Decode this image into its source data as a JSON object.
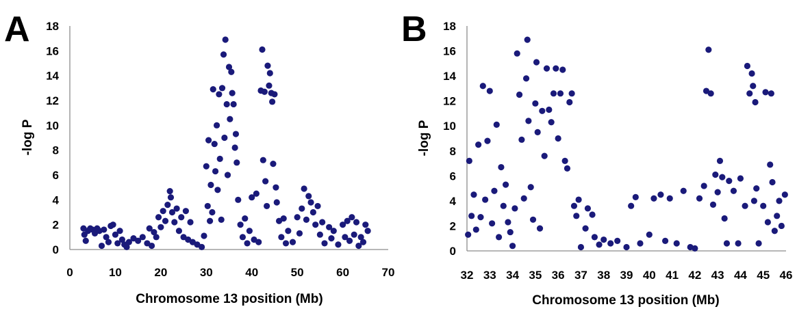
{
  "point_color": "#1a1a7a",
  "axis_color": "#8c8c8c",
  "chart_data": [
    {
      "panel": "A",
      "type": "scatter",
      "xlabel": "Chromosome 13 position (Mb)",
      "ylabel": "-log P",
      "xlim": [
        0,
        70
      ],
      "ylim": [
        0,
        18
      ],
      "xticks": [
        0,
        10,
        20,
        30,
        40,
        50,
        60,
        70
      ],
      "yticks": [
        0,
        2,
        4,
        6,
        8,
        10,
        12,
        14,
        16,
        18
      ],
      "grid": false,
      "points": [
        [
          3.0,
          1.7
        ],
        [
          3.2,
          1.2
        ],
        [
          3.5,
          0.7
        ],
        [
          4.0,
          1.5
        ],
        [
          4.5,
          1.7
        ],
        [
          5.0,
          1.6
        ],
        [
          5.5,
          1.3
        ],
        [
          6.0,
          1.7
        ],
        [
          6.5,
          1.5
        ],
        [
          7.0,
          0.3
        ],
        [
          7.5,
          1.6
        ],
        [
          8.0,
          1.0
        ],
        [
          8.5,
          0.6
        ],
        [
          9.0,
          1.9
        ],
        [
          9.5,
          2.0
        ],
        [
          10.0,
          1.2
        ],
        [
          10.5,
          0.5
        ],
        [
          11.0,
          1.5
        ],
        [
          11.5,
          0.8
        ],
        [
          12.0,
          0.4
        ],
        [
          12.5,
          0.2
        ],
        [
          13.0,
          0.6
        ],
        [
          14.0,
          0.9
        ],
        [
          15.0,
          0.7
        ],
        [
          16.0,
          1.0
        ],
        [
          17.0,
          0.5
        ],
        [
          17.5,
          1.7
        ],
        [
          18.0,
          0.3
        ],
        [
          18.5,
          1.4
        ],
        [
          19.0,
          1.0
        ],
        [
          19.5,
          2.6
        ],
        [
          20.0,
          1.8
        ],
        [
          20.5,
          3.1
        ],
        [
          21.0,
          2.3
        ],
        [
          21.5,
          3.6
        ],
        [
          22.0,
          4.7
        ],
        [
          22.2,
          4.2
        ],
        [
          22.5,
          3.0
        ],
        [
          23.0,
          2.2
        ],
        [
          23.5,
          3.3
        ],
        [
          24.0,
          1.5
        ],
        [
          24.5,
          2.6
        ],
        [
          25.0,
          1.0
        ],
        [
          25.5,
          3.1
        ],
        [
          26.0,
          0.8
        ],
        [
          26.5,
          2.2
        ],
        [
          27.0,
          0.6
        ],
        [
          28.0,
          0.4
        ],
        [
          29.0,
          0.2
        ],
        [
          29.5,
          1.1
        ],
        [
          30.0,
          6.7
        ],
        [
          30.3,
          3.5
        ],
        [
          30.5,
          8.8
        ],
        [
          30.8,
          2.3
        ],
        [
          31.0,
          5.2
        ],
        [
          31.3,
          3.0
        ],
        [
          31.5,
          12.9
        ],
        [
          31.8,
          8.5
        ],
        [
          32.0,
          6.3
        ],
        [
          32.3,
          10.0
        ],
        [
          32.5,
          4.8
        ],
        [
          32.8,
          12.5
        ],
        [
          33.0,
          7.3
        ],
        [
          33.3,
          2.4
        ],
        [
          33.5,
          13.0
        ],
        [
          33.8,
          15.7
        ],
        [
          34.0,
          9.0
        ],
        [
          34.2,
          16.9
        ],
        [
          34.5,
          11.7
        ],
        [
          34.7,
          6.0
        ],
        [
          35.0,
          14.7
        ],
        [
          35.2,
          10.5
        ],
        [
          35.5,
          14.3
        ],
        [
          35.7,
          12.6
        ],
        [
          36.0,
          11.7
        ],
        [
          36.3,
          8.2
        ],
        [
          36.5,
          9.3
        ],
        [
          36.7,
          7.0
        ],
        [
          37.0,
          4.0
        ],
        [
          37.5,
          2.0
        ],
        [
          38.0,
          1.0
        ],
        [
          38.5,
          2.5
        ],
        [
          39.0,
          0.5
        ],
        [
          39.5,
          1.5
        ],
        [
          40.0,
          4.2
        ],
        [
          40.5,
          0.8
        ],
        [
          41.0,
          4.5
        ],
        [
          41.5,
          0.6
        ],
        [
          42.0,
          12.8
        ],
        [
          42.3,
          16.1
        ],
        [
          42.5,
          7.2
        ],
        [
          42.8,
          12.7
        ],
        [
          43.0,
          5.5
        ],
        [
          43.3,
          3.5
        ],
        [
          43.5,
          14.8
        ],
        [
          43.8,
          13.2
        ],
        [
          44.0,
          14.2
        ],
        [
          44.3,
          12.6
        ],
        [
          44.5,
          11.9
        ],
        [
          44.7,
          6.9
        ],
        [
          45.0,
          12.5
        ],
        [
          45.3,
          5.0
        ],
        [
          45.5,
          3.8
        ],
        [
          46.0,
          2.3
        ],
        [
          46.5,
          1.0
        ],
        [
          47.0,
          2.5
        ],
        [
          47.5,
          0.5
        ],
        [
          48.0,
          1.5
        ],
        [
          49.0,
          0.6
        ],
        [
          50.0,
          2.6
        ],
        [
          50.5,
          1.3
        ],
        [
          51.0,
          3.3
        ],
        [
          51.5,
          4.9
        ],
        [
          52.0,
          2.4
        ],
        [
          52.5,
          4.3
        ],
        [
          53.0,
          3.8
        ],
        [
          53.5,
          3.0
        ],
        [
          54.0,
          2.0
        ],
        [
          54.5,
          3.5
        ],
        [
          55.0,
          1.2
        ],
        [
          55.5,
          2.2
        ],
        [
          56.0,
          0.5
        ],
        [
          57.0,
          1.8
        ],
        [
          57.5,
          0.9
        ],
        [
          58.0,
          1.5
        ],
        [
          59.0,
          0.4
        ],
        [
          60.0,
          2.0
        ],
        [
          60.5,
          1.0
        ],
        [
          61.0,
          2.3
        ],
        [
          61.5,
          0.7
        ],
        [
          62.0,
          2.6
        ],
        [
          62.5,
          1.2
        ],
        [
          63.0,
          2.2
        ],
        [
          63.5,
          0.3
        ],
        [
          64.0,
          1.0
        ],
        [
          64.5,
          0.6
        ],
        [
          65.0,
          2.0
        ],
        [
          65.5,
          1.5
        ]
      ]
    },
    {
      "panel": "B",
      "type": "scatter",
      "xlabel": "Chromosome 13 position (Mb)",
      "ylabel": "-log P",
      "xlim": [
        32,
        46
      ],
      "ylim": [
        0,
        18
      ],
      "xticks": [
        32,
        33,
        34,
        35,
        36,
        37,
        38,
        39,
        40,
        41,
        42,
        43,
        44,
        45,
        46
      ],
      "yticks": [
        0,
        2,
        4,
        6,
        8,
        10,
        12,
        14,
        16,
        18
      ],
      "grid": false,
      "points": [
        [
          32.05,
          1.3
        ],
        [
          32.1,
          7.2
        ],
        [
          32.2,
          2.8
        ],
        [
          32.3,
          4.5
        ],
        [
          32.4,
          1.7
        ],
        [
          32.5,
          8.5
        ],
        [
          32.6,
          2.7
        ],
        [
          32.7,
          13.2
        ],
        [
          32.8,
          4.1
        ],
        [
          32.9,
          8.8
        ],
        [
          33.0,
          12.8
        ],
        [
          33.1,
          2.2
        ],
        [
          33.2,
          4.8
        ],
        [
          33.3,
          10.1
        ],
        [
          33.4,
          1.1
        ],
        [
          33.5,
          6.7
        ],
        [
          33.6,
          3.6
        ],
        [
          33.7,
          5.3
        ],
        [
          33.8,
          2.3
        ],
        [
          33.9,
          1.5
        ],
        [
          34.0,
          0.4
        ],
        [
          34.1,
          3.4
        ],
        [
          34.2,
          15.8
        ],
        [
          34.3,
          12.5
        ],
        [
          34.4,
          8.9
        ],
        [
          34.5,
          4.2
        ],
        [
          34.6,
          13.8
        ],
        [
          34.65,
          16.9
        ],
        [
          34.7,
          10.4
        ],
        [
          34.8,
          5.1
        ],
        [
          34.9,
          2.5
        ],
        [
          35.0,
          11.8
        ],
        [
          35.05,
          15.1
        ],
        [
          35.1,
          9.5
        ],
        [
          35.2,
          1.8
        ],
        [
          35.3,
          11.2
        ],
        [
          35.4,
          7.6
        ],
        [
          35.5,
          14.6
        ],
        [
          35.6,
          11.3
        ],
        [
          35.7,
          10.3
        ],
        [
          35.8,
          12.6
        ],
        [
          35.9,
          14.6
        ],
        [
          36.0,
          9.0
        ],
        [
          36.1,
          12.6
        ],
        [
          36.2,
          14.5
        ],
        [
          36.3,
          7.2
        ],
        [
          36.4,
          6.6
        ],
        [
          36.5,
          11.9
        ],
        [
          36.6,
          12.6
        ],
        [
          36.7,
          3.6
        ],
        [
          36.8,
          2.8
        ],
        [
          36.9,
          4.1
        ],
        [
          37.0,
          0.3
        ],
        [
          37.2,
          1.8
        ],
        [
          37.3,
          3.4
        ],
        [
          37.5,
          2.9
        ],
        [
          37.6,
          1.1
        ],
        [
          37.8,
          0.5
        ],
        [
          38.0,
          0.9
        ],
        [
          38.3,
          0.6
        ],
        [
          38.6,
          0.8
        ],
        [
          39.0,
          0.3
        ],
        [
          39.2,
          3.6
        ],
        [
          39.4,
          4.3
        ],
        [
          39.6,
          0.6
        ],
        [
          40.0,
          1.3
        ],
        [
          40.2,
          4.2
        ],
        [
          40.5,
          4.5
        ],
        [
          40.7,
          0.8
        ],
        [
          40.9,
          4.2
        ],
        [
          41.2,
          0.6
        ],
        [
          41.5,
          4.8
        ],
        [
          41.8,
          0.3
        ],
        [
          42.0,
          0.2
        ],
        [
          42.2,
          4.2
        ],
        [
          42.4,
          5.2
        ],
        [
          42.5,
          12.8
        ],
        [
          42.6,
          16.1
        ],
        [
          42.7,
          12.6
        ],
        [
          42.8,
          3.7
        ],
        [
          42.9,
          6.1
        ],
        [
          43.0,
          4.7
        ],
        [
          43.1,
          7.2
        ],
        [
          43.2,
          5.9
        ],
        [
          43.3,
          2.6
        ],
        [
          43.4,
          0.6
        ],
        [
          43.5,
          5.6
        ],
        [
          43.7,
          4.8
        ],
        [
          43.9,
          0.6
        ],
        [
          44.0,
          5.8
        ],
        [
          44.2,
          3.6
        ],
        [
          44.3,
          14.8
        ],
        [
          44.4,
          12.6
        ],
        [
          44.5,
          14.2
        ],
        [
          44.55,
          13.2
        ],
        [
          44.6,
          4.0
        ],
        [
          44.65,
          11.9
        ],
        [
          44.7,
          5.0
        ],
        [
          44.8,
          0.6
        ],
        [
          45.0,
          3.6
        ],
        [
          45.1,
          12.7
        ],
        [
          45.2,
          2.3
        ],
        [
          45.3,
          6.9
        ],
        [
          45.35,
          12.6
        ],
        [
          45.4,
          5.5
        ],
        [
          45.5,
          1.6
        ],
        [
          45.6,
          2.8
        ],
        [
          45.7,
          4.0
        ],
        [
          45.8,
          2.0
        ],
        [
          45.95,
          4.5
        ]
      ]
    }
  ]
}
